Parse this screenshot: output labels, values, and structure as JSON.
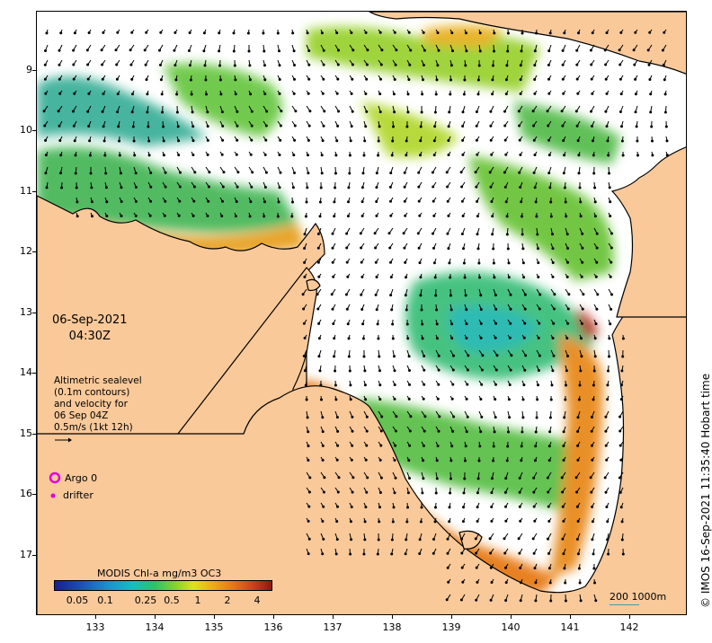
{
  "map": {
    "date": "06-Sep-2021",
    "time": "04:30Z",
    "info_lines": [
      "Altimetric sealevel",
      "(0.1m contours)",
      "and velocity for",
      "06 Sep 04Z",
      "0.5m/s (1kt 12h)"
    ],
    "legend": {
      "argo_label": "Argo 0",
      "argo_color": "#e000e0",
      "drifter_label": "drifter",
      "drifter_color": "#e000e0"
    },
    "colorbar": {
      "title": "MODIS Chl-a mg/m3 OC3",
      "ticks": [
        "0.05",
        "0.1",
        "0.25",
        "0.5",
        "1",
        "2",
        "4"
      ]
    },
    "scale_label": "200  1000m",
    "credit": "© IMOS 16-Sep-2021 11:35:40 Hobart time",
    "y_ticks": [
      "9",
      "10",
      "11",
      "12",
      "13",
      "14",
      "15",
      "16",
      "17"
    ],
    "x_ticks": [
      "133",
      "134",
      "135",
      "136",
      "137",
      "138",
      "139",
      "140",
      "141",
      "142"
    ],
    "colors": {
      "land": "#f9c99a",
      "ocean": "#ffffff",
      "coast": "#000000",
      "high_chl": "#e07a18",
      "mid_chl": "#8acd2a",
      "low_chl": "#26b89a"
    }
  }
}
